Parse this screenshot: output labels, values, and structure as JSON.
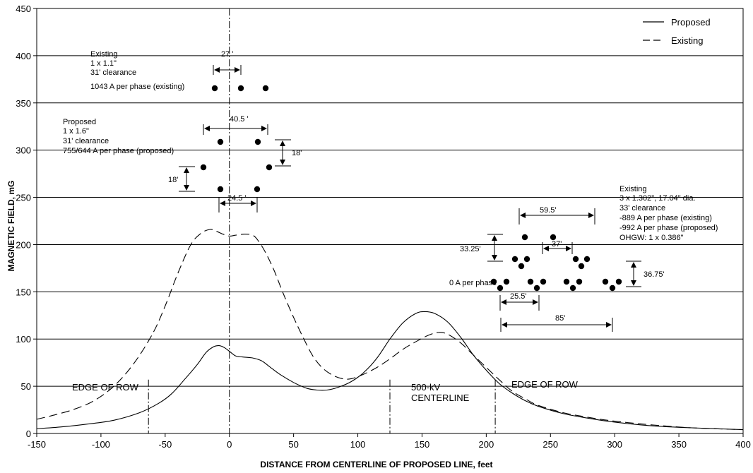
{
  "chart_data": {
    "type": "line",
    "xlabel": "DISTANCE FROM CENTERLINE OF PROPOSED LINE, feet",
    "ylabel": "MAGNETIC FIELD, mG",
    "xlim": [
      -150,
      400
    ],
    "ylim": [
      0,
      450
    ],
    "x_ticks": [
      -150,
      -100,
      -50,
      0,
      50,
      100,
      150,
      200,
      250,
      300,
      350,
      400
    ],
    "y_ticks": [
      0,
      50,
      100,
      150,
      200,
      250,
      300,
      350,
      400,
      450
    ],
    "grid": "horizontal",
    "legend_position": "top-right",
    "series": [
      {
        "name": "Proposed",
        "style": "solid",
        "points": [
          [
            -150,
            5
          ],
          [
            -130,
            7
          ],
          [
            -110,
            10
          ],
          [
            -90,
            14
          ],
          [
            -70,
            22
          ],
          [
            -55,
            32
          ],
          [
            -45,
            42
          ],
          [
            -35,
            57
          ],
          [
            -25,
            73
          ],
          [
            -18,
            86
          ],
          [
            -12,
            92
          ],
          [
            -8,
            93
          ],
          [
            -4,
            91
          ],
          [
            0,
            87
          ],
          [
            5,
            82
          ],
          [
            10,
            81
          ],
          [
            18,
            80
          ],
          [
            25,
            77
          ],
          [
            32,
            70
          ],
          [
            40,
            62
          ],
          [
            50,
            54
          ],
          [
            60,
            48
          ],
          [
            68,
            46
          ],
          [
            76,
            46
          ],
          [
            85,
            49
          ],
          [
            95,
            55
          ],
          [
            105,
            65
          ],
          [
            115,
            80
          ],
          [
            125,
            100
          ],
          [
            135,
            117
          ],
          [
            145,
            127
          ],
          [
            152,
            129
          ],
          [
            160,
            127
          ],
          [
            170,
            118
          ],
          [
            180,
            102
          ],
          [
            190,
            83
          ],
          [
            200,
            67
          ],
          [
            210,
            53
          ],
          [
            220,
            43
          ],
          [
            230,
            35
          ],
          [
            240,
            29
          ],
          [
            260,
            21
          ],
          [
            280,
            16
          ],
          [
            300,
            12
          ],
          [
            330,
            8
          ],
          [
            360,
            6
          ],
          [
            400,
            4
          ]
        ]
      },
      {
        "name": "Existing",
        "style": "dashed",
        "points": [
          [
            -150,
            15
          ],
          [
            -135,
            20
          ],
          [
            -120,
            26
          ],
          [
            -105,
            35
          ],
          [
            -90,
            50
          ],
          [
            -75,
            73
          ],
          [
            -60,
            105
          ],
          [
            -50,
            135
          ],
          [
            -40,
            170
          ],
          [
            -30,
            200
          ],
          [
            -22,
            212
          ],
          [
            -15,
            216
          ],
          [
            -10,
            214
          ],
          [
            -5,
            211
          ],
          [
            0,
            209
          ],
          [
            5,
            210
          ],
          [
            12,
            211
          ],
          [
            18,
            210
          ],
          [
            22,
            205
          ],
          [
            28,
            192
          ],
          [
            35,
            172
          ],
          [
            42,
            148
          ],
          [
            50,
            123
          ],
          [
            58,
            100
          ],
          [
            65,
            82
          ],
          [
            72,
            70
          ],
          [
            80,
            62
          ],
          [
            88,
            58
          ],
          [
            95,
            58
          ],
          [
            105,
            63
          ],
          [
            115,
            70
          ],
          [
            125,
            79
          ],
          [
            135,
            89
          ],
          [
            145,
            97
          ],
          [
            155,
            104
          ],
          [
            163,
            107
          ],
          [
            170,
            105
          ],
          [
            180,
            96
          ],
          [
            190,
            83
          ],
          [
            200,
            70
          ],
          [
            210,
            57
          ],
          [
            220,
            45
          ],
          [
            230,
            37
          ],
          [
            240,
            30
          ],
          [
            260,
            22
          ],
          [
            280,
            17
          ],
          [
            300,
            13
          ],
          [
            330,
            9
          ],
          [
            360,
            6
          ],
          [
            400,
            4
          ]
        ]
      }
    ],
    "reference_lines": [
      {
        "x": 0,
        "style": "dash-dot"
      },
      {
        "x": -63,
        "style": "dash-dot"
      },
      {
        "x": 125,
        "style": "dash-dot"
      },
      {
        "x": 207,
        "style": "dash-dot"
      }
    ],
    "labels": {
      "edge_left": "EDGE OF ROW",
      "centerline_line1": "500-kV",
      "centerline_line2": "CENTERLINE",
      "edge_right": "EDGE OF ROW"
    },
    "annotations": {
      "existing_block": [
        "Existing",
        "1 x 1.1\"",
        "31' clearance",
        "1043 A per phase (existing)"
      ],
      "proposed_block": [
        "Proposed",
        "1 x 1.6\"",
        "31' clearance",
        "755/644 A per phase (proposed)"
      ],
      "right_block": [
        "Existing",
        "3 x 1.302\", 17.04\" dia.",
        "33' clearance",
        "-889 A per phase (existing)",
        "-992 A per phase (proposed)",
        "OHGW: 1 x 0.386\""
      ],
      "zero_a": "0 A per phase",
      "dims": {
        "d27": "27 '",
        "d40_5": "40.5 '",
        "d18a": "18'",
        "d18b": "18'",
        "d24_5": "24.5 '",
        "d59_5": "59.5'",
        "d37": "37'",
        "d33_25": "33.25'",
        "d36_75": "36.75'",
        "d25_5": "25.5'",
        "d85": "85'"
      }
    }
  }
}
